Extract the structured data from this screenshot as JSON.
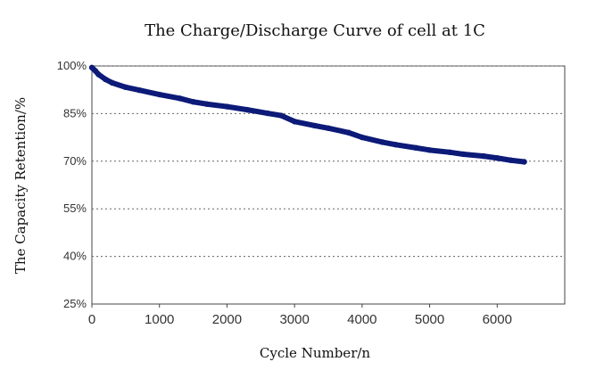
{
  "chart_data": {
    "type": "line",
    "title": "The Charge/Discharge Curve of cell at 1C",
    "xlabel": "Cycle Number/n",
    "ylabel": "The Capacity Retention/%",
    "xlim": [
      0,
      7000
    ],
    "ylim": [
      25,
      100
    ],
    "x_ticks": [
      {
        "value": 0,
        "label": "0"
      },
      {
        "value": 1000,
        "label": "1000"
      },
      {
        "value": 2000,
        "label": "2000"
      },
      {
        "value": 3000,
        "label": "3000"
      },
      {
        "value": 4000,
        "label": "4000"
      },
      {
        "value": 5000,
        "label": "5000"
      },
      {
        "value": 6000,
        "label": "6000"
      }
    ],
    "y_ticks": [
      {
        "value": 100,
        "label": "100%"
      },
      {
        "value": 85,
        "label": "85%"
      },
      {
        "value": 70,
        "label": "70%"
      },
      {
        "value": 55,
        "label": "55%"
      },
      {
        "value": 40,
        "label": "40%"
      },
      {
        "value": 25,
        "label": "25%"
      }
    ],
    "grid": "horizontal-dotted",
    "series": [
      {
        "color": "#0c1a78",
        "x": [
          0,
          50,
          100,
          200,
          300,
          500,
          700,
          1000,
          1300,
          1500,
          1700,
          2000,
          2300,
          2600,
          2800,
          3000,
          3300,
          3500,
          3800,
          4000,
          4300,
          4500,
          4800,
          5000,
          5300,
          5500,
          5800,
          6000,
          6200,
          6400
        ],
        "y": [
          99.5,
          98.5,
          97.3,
          95.8,
          94.7,
          93.3,
          92.4,
          91.0,
          89.8,
          88.7,
          88.0,
          87.2,
          86.2,
          85.1,
          84.4,
          82.5,
          81.2,
          80.4,
          79.0,
          77.5,
          76.0,
          75.2,
          74.2,
          73.5,
          72.8,
          72.2,
          71.6,
          71.0,
          70.3,
          69.8
        ]
      }
    ]
  }
}
